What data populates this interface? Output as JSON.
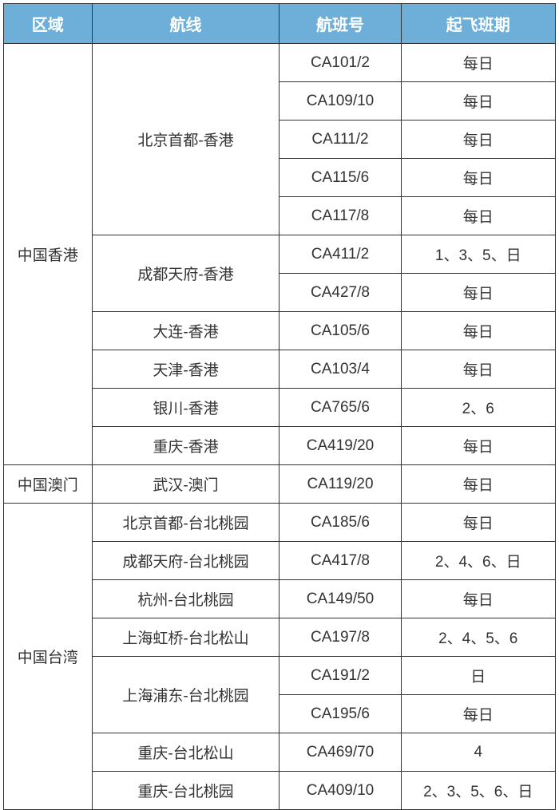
{
  "headers": {
    "region": "区域",
    "route": "航线",
    "flight": "航班号",
    "schedule": "起飞班期"
  },
  "rows": [
    {
      "region": "中国香港",
      "route": "北京首都-香港",
      "flight": "CA101/2",
      "schedule": "每日",
      "regionSpan": 11,
      "routeSpan": 5
    },
    {
      "flight": "CA109/10",
      "schedule": "每日"
    },
    {
      "flight": "CA111/2",
      "schedule": "每日"
    },
    {
      "flight": "CA115/6",
      "schedule": "每日"
    },
    {
      "flight": "CA117/8",
      "schedule": "每日"
    },
    {
      "route": "成都天府-香港",
      "flight": "CA411/2",
      "schedule": "1、3、5、日",
      "routeSpan": 2
    },
    {
      "flight": "CA427/8",
      "schedule": "每日"
    },
    {
      "route": "大连-香港",
      "flight": "CA105/6",
      "schedule": "每日",
      "routeSpan": 1
    },
    {
      "route": "天津-香港",
      "flight": "CA103/4",
      "schedule": "每日",
      "routeSpan": 1
    },
    {
      "route": "银川-香港",
      "flight": "CA765/6",
      "schedule": "2、6",
      "routeSpan": 1
    },
    {
      "route": "重庆-香港",
      "flight": "CA419/20",
      "schedule": "每日",
      "routeSpan": 1
    },
    {
      "region": "中国澳门",
      "route": "武汉-澳门",
      "flight": "CA119/20",
      "schedule": "每日",
      "regionSpan": 1,
      "routeSpan": 1
    },
    {
      "region": "中国台湾",
      "route": "北京首都-台北桃园",
      "flight": "CA185/6",
      "schedule": "每日",
      "regionSpan": 8,
      "routeSpan": 1
    },
    {
      "route": "成都天府-台北桃园",
      "flight": "CA417/8",
      "schedule": "2、4、6、日",
      "routeSpan": 1
    },
    {
      "route": "杭州-台北桃园",
      "flight": "CA149/50",
      "schedule": "每日",
      "routeSpan": 1
    },
    {
      "route": "上海虹桥-台北松山",
      "flight": "CA197/8",
      "schedule": "2、4、5、6",
      "routeSpan": 1
    },
    {
      "route": "上海浦东-台北桃园",
      "flight": "CA191/2",
      "schedule": "日",
      "routeSpan": 2
    },
    {
      "flight": "CA195/6",
      "schedule": "每日"
    },
    {
      "route": "重庆-台北松山",
      "flight": "CA469/70",
      "schedule": "4",
      "routeSpan": 1
    },
    {
      "route": "重庆-台北桃园",
      "flight": "CA409/10",
      "schedule": "2、3、5、6、日",
      "routeSpan": 1
    }
  ],
  "styling": {
    "headerBg": "#6dafd8",
    "headerText": "#ffffff",
    "cellText": "#333333",
    "borderColor": "#333333",
    "bgColor": "#ffffff",
    "headerFontSize": 20,
    "cellFontSize": 19
  }
}
